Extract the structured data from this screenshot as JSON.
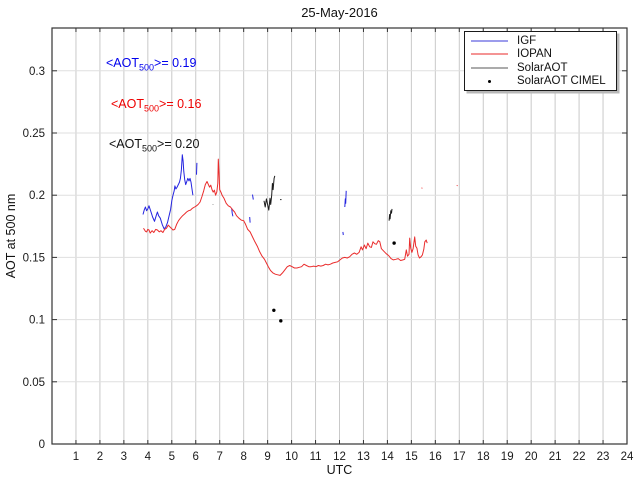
{
  "chart_data": {
    "type": "line",
    "title": "25-May-2016",
    "xlabel": "UTC",
    "ylabel": "AOT at 500 nm",
    "x_axis": {
      "range": [
        0,
        24
      ],
      "ticks": [
        1,
        2,
        3,
        4,
        5,
        6,
        7,
        8,
        9,
        10,
        11,
        12,
        13,
        14,
        15,
        16,
        17,
        18,
        19,
        20,
        21,
        22,
        23,
        24
      ]
    },
    "y_axis": {
      "range": [
        0,
        0.3344
      ],
      "ticks": [
        0,
        0.05,
        0.1,
        0.15,
        0.2,
        0.25,
        0.3
      ],
      "tick_labels": [
        "0",
        "0.05",
        "0.1",
        "0.15",
        "0.2",
        "0.25",
        "0.3"
      ]
    },
    "grid": {
      "v_color": "#c9c9c9",
      "h_color": "#dfdfdf"
    },
    "axis_color": "#333333",
    "tick_text_color": "#1a1a1a",
    "series": [
      {
        "name": "IGF",
        "type": "line",
        "color": "#2424e0",
        "segments": [
          [
            [
              3.8,
              0.1845
            ],
            [
              3.85,
              0.188
            ],
            [
              3.9,
              0.1905
            ],
            [
              3.95,
              0.1875
            ],
            [
              4.0,
              0.189
            ],
            [
              4.05,
              0.1915
            ],
            [
              4.1,
              0.1885
            ],
            [
              4.15,
              0.1855
            ],
            [
              4.2,
              0.1825
            ],
            [
              4.28,
              0.179
            ],
            [
              4.35,
              0.1835
            ],
            [
              4.4,
              0.1865
            ],
            [
              4.45,
              0.1835
            ],
            [
              4.52,
              0.1815
            ],
            [
              4.6,
              0.1765
            ],
            [
              4.68,
              0.173
            ],
            [
              4.75,
              0.1745
            ],
            [
              4.82,
              0.178
            ],
            [
              4.9,
              0.1845
            ],
            [
              4.95,
              0.1885
            ],
            [
              5.0,
              0.1955
            ],
            [
              5.05,
              0.2
            ],
            [
              5.1,
              0.2035
            ],
            [
              5.13,
              0.2075
            ],
            [
              5.17,
              0.205
            ],
            [
              5.22,
              0.2065
            ],
            [
              5.27,
              0.2085
            ],
            [
              5.32,
              0.2105
            ],
            [
              5.36,
              0.2135
            ],
            [
              5.4,
              0.2205
            ],
            [
              5.44,
              0.2325
            ],
            [
              5.47,
              0.2275
            ],
            [
              5.5,
              0.219
            ],
            [
              5.54,
              0.2125
            ],
            [
              5.58,
              0.2085
            ],
            [
              5.62,
              0.2105
            ],
            [
              5.67,
              0.2135
            ],
            [
              5.72,
              0.2115
            ],
            [
              5.76,
              0.2135
            ],
            [
              5.8,
              0.2105
            ],
            [
              5.84,
              0.2055
            ],
            [
              5.88,
              0.2
            ]
          ],
          [
            [
              6.03,
              0.2165
            ],
            [
              6.05,
              0.226
            ]
          ],
          [
            [
              7.5,
              0.1895
            ],
            [
              7.52,
              0.1855
            ],
            [
              7.55,
              0.183
            ]
          ],
          [
            [
              8.25,
              0.1825
            ],
            [
              8.27,
              0.178
            ]
          ],
          [
            [
              8.37,
              0.2005
            ],
            [
              8.4,
              0.1965
            ]
          ],
          [
            [
              12.14,
              0.1705
            ],
            [
              12.16,
              0.168
            ]
          ],
          [
            [
              12.22,
              0.1905
            ],
            [
              12.24,
              0.197
            ],
            [
              12.26,
              0.1935
            ],
            [
              12.28,
              0.2035
            ]
          ]
        ]
      },
      {
        "name": "IOPAN",
        "type": "line",
        "color": "#ea2c2c",
        "segments": [
          [
            [
              3.82,
              0.1735
            ],
            [
              3.9,
              0.171
            ],
            [
              3.95,
              0.1705
            ],
            [
              4.0,
              0.1725
            ],
            [
              4.05,
              0.172
            ],
            [
              4.1,
              0.1695
            ],
            [
              4.18,
              0.1715
            ],
            [
              4.25,
              0.17
            ],
            [
              4.33,
              0.1725
            ],
            [
              4.4,
              0.172
            ],
            [
              4.48,
              0.1705
            ],
            [
              4.55,
              0.1715
            ],
            [
              4.63,
              0.17
            ],
            [
              4.7,
              0.1725
            ],
            [
              4.78,
              0.1735
            ],
            [
              4.85,
              0.176
            ],
            [
              4.92,
              0.1745
            ],
            [
              4.98,
              0.1735
            ],
            [
              5.05,
              0.172
            ],
            [
              5.12,
              0.1725
            ],
            [
              5.2,
              0.1765
            ],
            [
              5.28,
              0.1795
            ],
            [
              5.36,
              0.1815
            ],
            [
              5.45,
              0.1835
            ],
            [
              5.54,
              0.185
            ],
            [
              5.62,
              0.1865
            ],
            [
              5.7,
              0.1875
            ],
            [
              5.78,
              0.188
            ],
            [
              5.86,
              0.1895
            ],
            [
              5.95,
              0.1905
            ],
            [
              6.03,
              0.1915
            ],
            [
              6.1,
              0.1925
            ],
            [
              6.18,
              0.1945
            ],
            [
              6.26,
              0.199
            ],
            [
              6.33,
              0.2035
            ],
            [
              6.4,
              0.2085
            ],
            [
              6.47,
              0.211
            ],
            [
              6.53,
              0.2085
            ],
            [
              6.58,
              0.2065
            ],
            [
              6.63,
              0.208
            ],
            [
              6.68,
              0.2045
            ],
            [
              6.73,
              0.2025
            ],
            [
              6.78,
              0.204
            ],
            [
              6.83,
              0.2
            ],
            [
              6.88,
              0.2025
            ],
            [
              6.92,
              0.2095
            ],
            [
              6.94,
              0.229
            ],
            [
              6.97,
              0.2185
            ],
            [
              7.0,
              0.2045
            ],
            [
              7.05,
              0.2025
            ],
            [
              7.1,
              0.2
            ],
            [
              7.18,
              0.1975
            ],
            [
              7.27,
              0.1935
            ],
            [
              7.36,
              0.1915
            ],
            [
              7.45,
              0.1905
            ],
            [
              7.53,
              0.1885
            ],
            [
              7.62,
              0.1865
            ],
            [
              7.7,
              0.1835
            ],
            [
              7.8,
              0.1815
            ],
            [
              7.9,
              0.18
            ],
            [
              8.0,
              0.1795
            ],
            [
              8.08,
              0.1765
            ],
            [
              8.17,
              0.1725
            ],
            [
              8.27,
              0.1705
            ],
            [
              8.37,
              0.1665
            ],
            [
              8.47,
              0.1625
            ],
            [
              8.57,
              0.159
            ],
            [
              8.67,
              0.1545
            ],
            [
              8.77,
              0.151
            ],
            [
              8.87,
              0.1485
            ],
            [
              8.95,
              0.1455
            ],
            [
              9.03,
              0.1425
            ],
            [
              9.12,
              0.1395
            ],
            [
              9.22,
              0.1375
            ],
            [
              9.32,
              0.1365
            ],
            [
              9.42,
              0.136
            ],
            [
              9.52,
              0.1355
            ],
            [
              9.62,
              0.1375
            ],
            [
              9.72,
              0.14
            ],
            [
              9.82,
              0.1425
            ],
            [
              9.92,
              0.1435
            ],
            [
              10.02,
              0.1425
            ],
            [
              10.12,
              0.1415
            ],
            [
              10.22,
              0.1415
            ],
            [
              10.32,
              0.142
            ],
            [
              10.42,
              0.1425
            ],
            [
              10.52,
              0.1445
            ],
            [
              10.62,
              0.1435
            ],
            [
              10.72,
              0.1425
            ],
            [
              10.82,
              0.1425
            ],
            [
              10.92,
              0.143
            ],
            [
              11.02,
              0.1425
            ],
            [
              11.12,
              0.1435
            ],
            [
              11.22,
              0.143
            ],
            [
              11.32,
              0.1435
            ],
            [
              11.42,
              0.1445
            ],
            [
              11.52,
              0.144
            ],
            [
              11.62,
              0.1445
            ],
            [
              11.72,
              0.1455
            ],
            [
              11.82,
              0.146
            ],
            [
              11.92,
              0.1465
            ],
            [
              12.02,
              0.148
            ],
            [
              12.12,
              0.1495
            ],
            [
              12.22,
              0.15
            ],
            [
              12.32,
              0.1495
            ],
            [
              12.42,
              0.1505
            ],
            [
              12.52,
              0.1525
            ],
            [
              12.62,
              0.1535
            ],
            [
              12.72,
              0.1525
            ],
            [
              12.82,
              0.154
            ],
            [
              12.9,
              0.1585
            ],
            [
              12.96,
              0.156
            ],
            [
              13.04,
              0.16
            ],
            [
              13.11,
              0.157
            ],
            [
              13.18,
              0.1615
            ],
            [
              13.26,
              0.1585
            ],
            [
              13.33,
              0.158
            ],
            [
              13.4,
              0.1625
            ],
            [
              13.47,
              0.161
            ],
            [
              13.54,
              0.1605
            ],
            [
              13.62,
              0.1635
            ],
            [
              13.68,
              0.1625
            ],
            [
              13.75,
              0.157
            ],
            [
              13.85,
              0.155
            ],
            [
              13.95,
              0.153
            ],
            [
              14.05,
              0.1515
            ],
            [
              14.15,
              0.149
            ],
            [
              14.25,
              0.148
            ],
            [
              14.35,
              0.1485
            ],
            [
              14.45,
              0.149
            ],
            [
              14.55,
              0.1475
            ],
            [
              14.65,
              0.148
            ],
            [
              14.72,
              0.1485
            ],
            [
              14.79,
              0.156
            ],
            [
              14.84,
              0.151
            ],
            [
              14.9,
              0.1525
            ],
            [
              14.93,
              0.1655
            ],
            [
              14.97,
              0.1575
            ],
            [
              15.02,
              0.154
            ],
            [
              15.07,
              0.157
            ],
            [
              15.14,
              0.1665
            ],
            [
              15.18,
              0.159
            ],
            [
              15.23,
              0.1575
            ],
            [
              15.28,
              0.152
            ],
            [
              15.34,
              0.1495
            ],
            [
              15.4,
              0.1505
            ],
            [
              15.46,
              0.152
            ],
            [
              15.52,
              0.1565
            ],
            [
              15.56,
              0.1625
            ],
            [
              15.62,
              0.164
            ],
            [
              15.66,
              0.1615
            ]
          ],
          [
            [
              15.43,
              0.2055
            ],
            [
              15.45,
              0.206
            ]
          ],
          [
            [
              16.9,
              0.2075
            ],
            [
              16.92,
              0.208
            ]
          ]
        ]
      },
      {
        "name": "SolarAOT",
        "type": "line",
        "color": "#1c1c1c",
        "segments": [
          [
            [
              6.71,
              0.1925
            ],
            [
              6.73,
              0.1925
            ]
          ],
          [
            [
              8.85,
              0.1955
            ],
            [
              8.9,
              0.1905
            ],
            [
              8.95,
              0.197
            ],
            [
              9.0,
              0.1925
            ],
            [
              9.05,
              0.188
            ],
            [
              9.1,
              0.1975
            ],
            [
              9.13,
              0.1925
            ],
            [
              9.17,
              0.2
            ],
            [
              9.2,
              0.2095
            ],
            [
              9.23,
              0.2045
            ],
            [
              9.27,
              0.2135
            ],
            [
              9.3,
              0.2155
            ]
          ],
          [
            [
              9.52,
              0.1965
            ],
            [
              9.58,
              0.1965
            ]
          ],
          [
            [
              14.07,
              0.1795
            ],
            [
              14.09,
              0.1845
            ],
            [
              14.11,
              0.181
            ],
            [
              14.14,
              0.1875
            ],
            [
              14.17,
              0.1855
            ],
            [
              14.19,
              0.189
            ]
          ]
        ]
      },
      {
        "name": "SolarAOT CIMEL",
        "type": "scatter",
        "color": "#000000",
        "points": [
          [
            9.26,
            0.1075
          ],
          [
            9.55,
            0.099
          ],
          [
            14.28,
            0.1615
          ]
        ]
      }
    ],
    "annotations": [
      {
        "prefix": "<AOT",
        "sub": "500",
        "suffix": ">= 0.19",
        "color": "#0000ee",
        "x": 106,
        "y": 56
      },
      {
        "prefix": "<AOT",
        "sub": "500",
        "suffix": ">= 0.16",
        "color": "#ee0000",
        "x": 111,
        "y": 97
      },
      {
        "prefix": "<AOT",
        "sub": "500",
        "suffix": ">= 0.20",
        "color": "#111111",
        "x": 109,
        "y": 137
      }
    ]
  },
  "legend": {
    "items": [
      {
        "label": "IGF",
        "swatch": "line",
        "color": "#9c9cec"
      },
      {
        "label": "IOPAN",
        "swatch": "line",
        "color": "#f49494"
      },
      {
        "label": "SolarAOT",
        "swatch": "line",
        "color": "#ababab"
      },
      {
        "label": "SolarAOT CIMEL",
        "swatch": "dot",
        "color": "#000000"
      }
    ]
  }
}
